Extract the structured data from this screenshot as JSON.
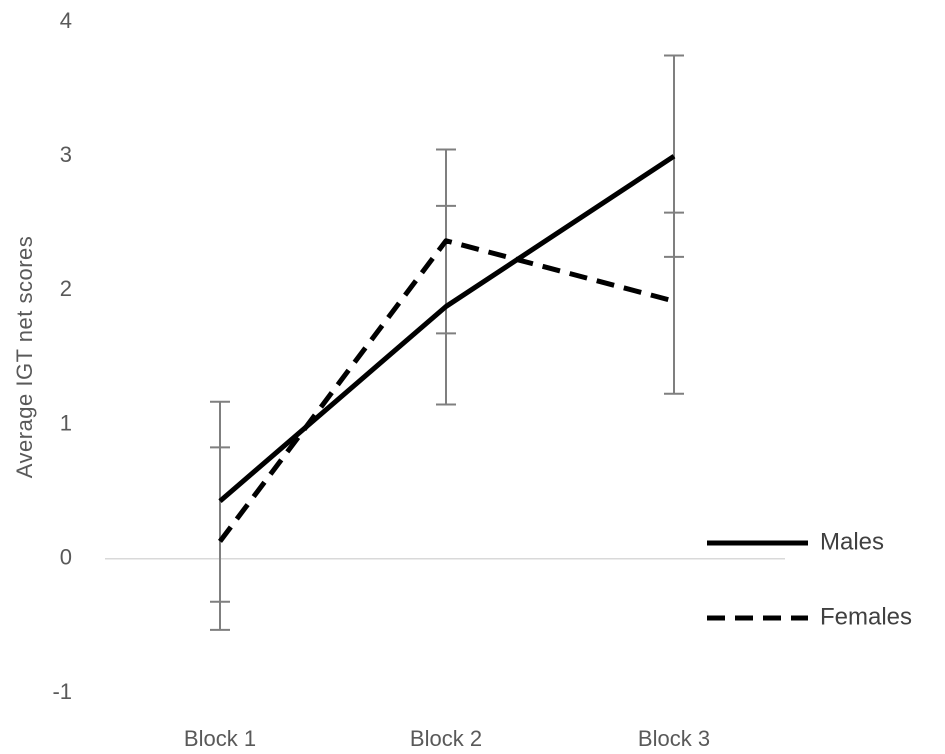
{
  "chart_data": {
    "type": "line",
    "title": "",
    "xlabel": "",
    "ylabel": "Average IGT net scores",
    "categories": [
      "Block 1",
      "Block 2",
      "Block 3"
    ],
    "ylim": [
      -1,
      4
    ],
    "yticks": [
      "-1",
      "0",
      "1",
      "2",
      "3",
      "4"
    ],
    "grid": false,
    "legend_position": "right",
    "series": [
      {
        "name": "Males",
        "style": "solid",
        "color": "#000000",
        "values": [
          0.43,
          1.88,
          3.0
        ],
        "error_low": [
          -0.32,
          1.15,
          2.25
        ],
        "error_high": [
          1.17,
          2.63,
          3.75
        ]
      },
      {
        "name": "Females",
        "style": "dashed",
        "color": "#000000",
        "values": [
          0.13,
          2.37,
          1.92
        ],
        "error_low": [
          -0.53,
          1.68,
          1.23
        ],
        "error_high": [
          0.83,
          3.05,
          2.58
        ]
      }
    ]
  }
}
